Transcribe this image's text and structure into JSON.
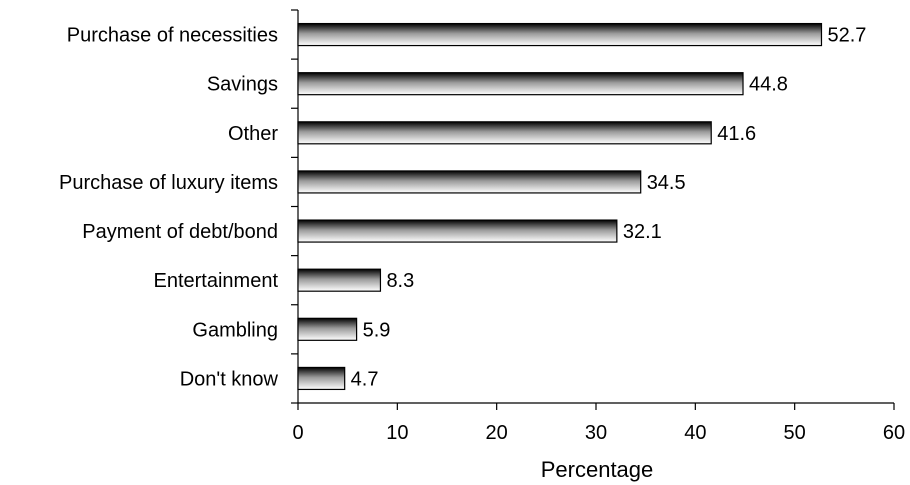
{
  "chart_data": {
    "type": "bar",
    "orientation": "horizontal",
    "categories": [
      "Purchase of necessities",
      "Savings",
      "Other",
      "Purchase of luxury items",
      "Payment of debt/bond",
      "Entertainment",
      "Gambling",
      "Don't know"
    ],
    "values": [
      52.7,
      44.8,
      41.6,
      34.5,
      32.1,
      8.3,
      5.9,
      4.7
    ],
    "data_labels": [
      "52.7",
      "44.8",
      "41.6",
      "34.5",
      "32.1",
      "8.3",
      "5.9",
      "4.7"
    ],
    "xlabel": "Percentage",
    "xlim": [
      0,
      60
    ],
    "xticks": [
      0,
      10,
      20,
      30,
      40,
      50,
      60
    ],
    "xtick_labels": [
      "0",
      "10",
      "20",
      "30",
      "40",
      "50",
      "60"
    ],
    "grid": false,
    "legend": "none",
    "bar_fill": "gradient",
    "bar_gradient_colors": [
      "#000000",
      "#ffffff"
    ],
    "bar_outline_color": "#000000"
  }
}
